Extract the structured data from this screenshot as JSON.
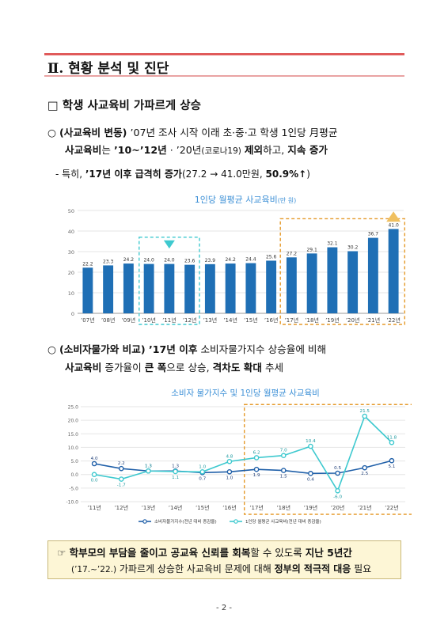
{
  "section": {
    "number": "Ⅱ",
    "title": ". 현황 분석 및 진단"
  },
  "subheading": "□ 학생 사교육비 가파르게 상승",
  "bullet1": {
    "marker": "○",
    "p1": "(사교육비 변동)",
    "p2": " ’07년 조사 시작 이래 초·중·고 학생 1인당 月평균",
    "p3": "사교육비",
    "p4": "는 ",
    "p5": "’10~’12년",
    "p6": " · ’20년",
    "p7": "(코로나19)",
    "p8": " ",
    "p9": "제외",
    "p10": "하고, ",
    "p11": "지속 증가"
  },
  "bullet2": {
    "p1": "- 특히, ",
    "p2": "’17년 이후 급격히 증가",
    "p3": "(27.2 → 41.0만원, ",
    "p4": "50.9%↑",
    "p5": ")"
  },
  "bullet3": {
    "marker": "○",
    "p1": "(소비자물가와 비교)",
    "p2": " ’17년 이후",
    "p3": " 소비자물가지수 상승율에 비해",
    "p4": "사교육비",
    "p5": " 증가율이 ",
    "p6": "큰 폭",
    "p7": "으로 상승, ",
    "p8": "격차도 확대",
    "p9": " 추세"
  },
  "note": {
    "marker": "☞",
    "p1": " 학부모의 부담을 줄이고 공교육 신뢰를 회복",
    "p2": "할 수 있도록 ",
    "p3": "지난 5년간",
    "p4": "(’17.~’22.)",
    "p5": " 가파르게 상승한 사교육비 문제에 대해 ",
    "p6": "정부의 적극적 대응",
    "p7": " 필요"
  },
  "page_number": "- 2 -",
  "chart_data": [
    {
      "type": "bar",
      "title": "1인당 월평균 사교육비",
      "title_unit": "(만 원)",
      "categories": [
        "’07년",
        "’08년",
        "’09년",
        "’10년",
        "’11년",
        "’12년",
        "’13년",
        "’14년",
        "’15년",
        "’16년",
        "’17년",
        "’18년",
        "’19년",
        "’20년",
        "’21년",
        "’22년"
      ],
      "values": [
        22.2,
        23.3,
        24.2,
        24.0,
        24.0,
        23.6,
        23.9,
        24.2,
        24.4,
        25.6,
        27.2,
        29.1,
        32.1,
        30.2,
        36.7,
        41.0
      ],
      "value_labels": [
        "22.2",
        "23.3",
        "24.2",
        "24.0",
        "24.0",
        "23.6",
        "23.9",
        "24.2",
        "24.4",
        "25.6",
        "27.2",
        "29.1",
        "32.1",
        "30.2",
        "36.7",
        "41.0"
      ],
      "yticks": [
        "0",
        "10",
        "20",
        "30",
        "40",
        "50"
      ],
      "ylim": [
        0,
        50
      ],
      "grid": true,
      "colors": {
        "bar": "#1f6fb5",
        "title": "#3b8fd6",
        "down_box": "#3ec9cf",
        "up_box": "#e59a2a",
        "up_arrow": "#f0c060"
      }
    },
    {
      "type": "line",
      "title": "소비자 물가지수 및 1인당 월평균 사교육비",
      "categories": [
        "’11년",
        "’12년",
        "’13년",
        "’14년",
        "’15년",
        "’16년",
        "’17년",
        "’18년",
        "’19년",
        "’20년",
        "’21년",
        "’22년"
      ],
      "yticks": [
        "-10.0",
        "-5.0",
        "0.0",
        "5.0",
        "10.0",
        "15.0",
        "20.0",
        "25.0"
      ],
      "ylim": [
        -10,
        25
      ],
      "grid": true,
      "series": [
        {
          "name": "소비자물가지수(전년 대비 증감율)",
          "values": [
            4.0,
            2.2,
            1.3,
            1.3,
            0.7,
            1.0,
            1.9,
            1.5,
            0.4,
            0.5,
            2.5,
            5.1
          ],
          "labels": [
            "4.0",
            "2.2",
            "1.3",
            "1.3",
            "0.7",
            "1.0",
            "1.9",
            "1.5",
            "0.4",
            "0.5",
            "2.5",
            "5.1"
          ],
          "color": "#1f5fa8"
        },
        {
          "name": "1인당 월평균 사교육비(전년 대비 증감율)",
          "values": [
            0.0,
            -1.7,
            1.3,
            1.1,
            1.0,
            4.8,
            6.2,
            7.0,
            10.4,
            -6.0,
            21.5,
            11.8
          ],
          "labels": [
            "0.0",
            "-1.7",
            "1.3",
            "1.1",
            "1.0",
            "4.8",
            "6.2",
            "7.0",
            "10.4",
            "-6.0",
            "21.5",
            "11.8"
          ],
          "color": "#3ec9cf"
        }
      ],
      "legend_position": "bottom",
      "colors": {
        "title": "#3b8fd6",
        "highlight_box": "#e59a2a"
      }
    }
  ]
}
